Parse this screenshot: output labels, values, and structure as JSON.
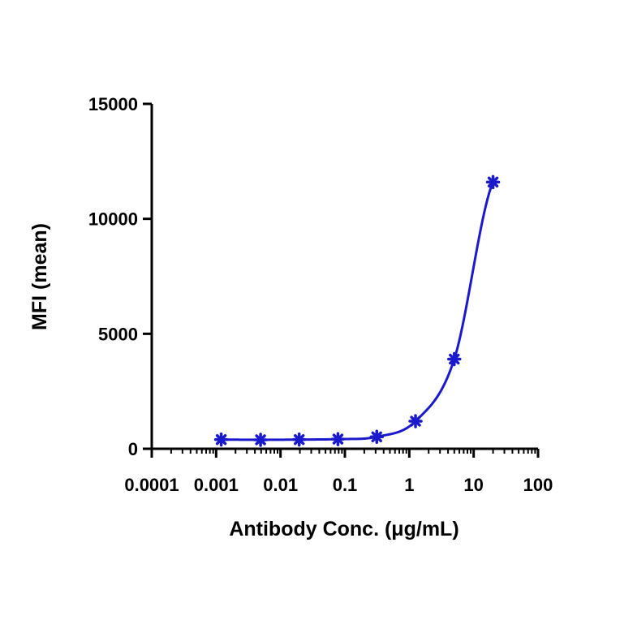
{
  "chart_data": {
    "type": "scatter",
    "xlabel": "Antibody Conc. (μg/mL)",
    "ylabel": "MFI (mean)",
    "x_scale": "log",
    "xlim": [
      0.0001,
      100
    ],
    "ylim": [
      0,
      15000
    ],
    "x_ticks": [
      "0.0001",
      "0.001",
      "0.01",
      "0.1",
      "1",
      "10",
      "100"
    ],
    "y_ticks": [
      "0",
      "5000",
      "10000",
      "15000"
    ],
    "grid": false,
    "series": [
      {
        "color": "#1a1acc",
        "marker": "asterisk",
        "fit": "sigmoidal",
        "x": [
          0.0012,
          0.0049,
          0.0195,
          0.078,
          0.3125,
          1.25,
          5,
          20
        ],
        "y": [
          400,
          390,
          400,
          420,
          520,
          1200,
          3900,
          11600
        ]
      }
    ]
  }
}
